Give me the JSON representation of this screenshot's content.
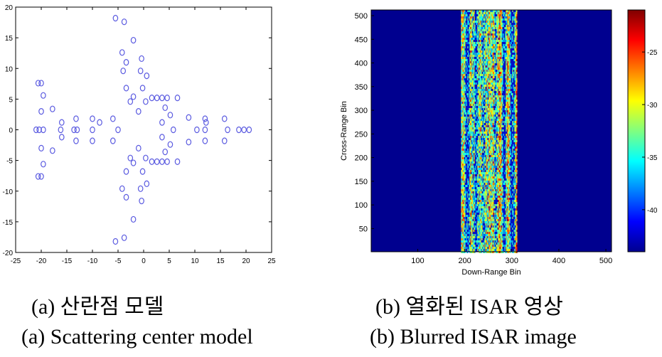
{
  "captions": {
    "a_korean": "(a) 산란점 모델",
    "a_english": "(a) Scattering center model",
    "b_korean": "(b) 열화된 ISAR 영상",
    "b_english": "(b) Blurred ISAR image"
  },
  "chart_data": [
    {
      "type": "scatter",
      "title": "",
      "xlabel": "",
      "ylabel": "",
      "xlim": [
        -25,
        25
      ],
      "ylim": [
        -20,
        20
      ],
      "xticks": [
        -25,
        -20,
        -15,
        -10,
        -5,
        0,
        5,
        10,
        15,
        20,
        25
      ],
      "yticks": [
        -20,
        -15,
        -10,
        -5,
        0,
        5,
        10,
        15,
        20
      ],
      "marker_color": "#5a5ae0",
      "points": [
        [
          -5.5,
          18.2
        ],
        [
          -3.8,
          17.6
        ],
        [
          -2,
          14.6
        ],
        [
          -4.2,
          12.6
        ],
        [
          -0.4,
          11.6
        ],
        [
          -3.4,
          11
        ],
        [
          -4,
          9.6
        ],
        [
          -0.6,
          9.6
        ],
        [
          0.6,
          8.8
        ],
        [
          -3.4,
          6.8
        ],
        [
          -0.2,
          6.8
        ],
        [
          -2,
          5.4
        ],
        [
          1.6,
          5.2
        ],
        [
          2.6,
          5.2
        ],
        [
          3.6,
          5.2
        ],
        [
          4.6,
          5.2
        ],
        [
          6.6,
          5.2
        ],
        [
          -2.6,
          4.6
        ],
        [
          0.4,
          4.6
        ],
        [
          -1,
          3
        ],
        [
          4.2,
          3.6
        ],
        [
          5.2,
          2.4
        ],
        [
          8.8,
          2
        ],
        [
          12,
          1.8
        ],
        [
          12.2,
          1.2
        ],
        [
          3.6,
          1.2
        ],
        [
          5.8,
          0
        ],
        [
          10.4,
          0
        ],
        [
          12,
          0
        ],
        [
          15.8,
          1.8
        ],
        [
          16.4,
          0
        ],
        [
          18.6,
          0
        ],
        [
          19.6,
          0
        ],
        [
          20.6,
          0
        ],
        [
          -20.6,
          7.6
        ],
        [
          -20,
          7.6
        ],
        [
          -19.6,
          5.6
        ],
        [
          -17.8,
          3.4
        ],
        [
          -20,
          3
        ],
        [
          -16,
          1.2
        ],
        [
          -13.2,
          1.8
        ],
        [
          -10,
          1.8
        ],
        [
          -8.6,
          1.2
        ],
        [
          -6,
          1.8
        ],
        [
          -21,
          0
        ],
        [
          -20.4,
          0
        ],
        [
          -19.6,
          0
        ],
        [
          -16.2,
          0
        ],
        [
          -13.6,
          0
        ],
        [
          -13,
          0
        ],
        [
          -10,
          0
        ],
        [
          -5,
          0
        ],
        [
          -16,
          -1.2
        ],
        [
          -13.2,
          -1.8
        ],
        [
          -10,
          -1.8
        ],
        [
          -6,
          -1.8
        ],
        [
          -20,
          -3
        ],
        [
          -17.8,
          -3.4
        ],
        [
          -19.6,
          -5.6
        ],
        [
          -20.6,
          -7.6
        ],
        [
          -20,
          -7.6
        ],
        [
          -5.5,
          -18.2
        ],
        [
          -3.8,
          -17.6
        ],
        [
          -2,
          -14.6
        ],
        [
          -4.2,
          -9.6
        ],
        [
          -3.4,
          -11
        ],
        [
          -0.4,
          -11.6
        ],
        [
          -0.6,
          -9.6
        ],
        [
          0.6,
          -8.8
        ],
        [
          -3.4,
          -6.8
        ],
        [
          -0.2,
          -6.8
        ],
        [
          -2,
          -5.4
        ],
        [
          -2.6,
          -4.6
        ],
        [
          0.4,
          -4.6
        ],
        [
          -1,
          -3
        ],
        [
          1.6,
          -5.2
        ],
        [
          2.6,
          -5.2
        ],
        [
          3.6,
          -5.2
        ],
        [
          4.6,
          -5.2
        ],
        [
          6.6,
          -5.2
        ],
        [
          4.2,
          -3.6
        ],
        [
          5.2,
          -2.4
        ],
        [
          8.8,
          -2
        ],
        [
          12,
          -1.8
        ],
        [
          15.8,
          -1.8
        ],
        [
          3.6,
          -1.2
        ]
      ]
    },
    {
      "type": "heatmap",
      "title": "",
      "xlabel": "Down-Range Bin",
      "ylabel": "Cross-Range Bin",
      "xlim": [
        1,
        512
      ],
      "ylim": [
        1,
        512
      ],
      "xticks": [
        100,
        200,
        300,
        400,
        500
      ],
      "yticks": [
        50,
        100,
        150,
        200,
        250,
        300,
        350,
        400,
        450,
        500
      ],
      "colorbar_ticks": [
        -25,
        -30,
        -35,
        -40
      ],
      "colorbar_range": [
        -44,
        -21
      ],
      "active_band": [
        192,
        312
      ],
      "background_color": "#00008f"
    }
  ]
}
